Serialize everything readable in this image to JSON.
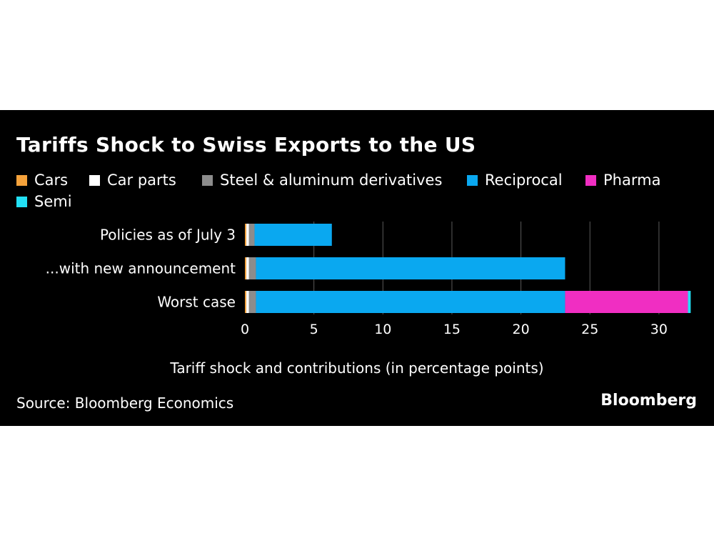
{
  "chart_data": {
    "type": "bar",
    "orientation": "horizontal",
    "stacked": true,
    "title": "Tariffs Shock to Swiss Exports to the US",
    "xlabel": "Tariff shock and contributions (in percentage points)",
    "categories": [
      "Policies as of July 3",
      "...with new announcement",
      "Worst case"
    ],
    "series": [
      {
        "name": "Cars",
        "color": "#f5a23b",
        "values": [
          0.1,
          0.1,
          0.1
        ]
      },
      {
        "name": "Car parts",
        "color": "#ffffff",
        "values": [
          0.2,
          0.2,
          0.2
        ]
      },
      {
        "name": "Steel & aluminum derivatives",
        "color": "#8c8c8c",
        "values": [
          0.4,
          0.5,
          0.5
        ]
      },
      {
        "name": "Reciprocal",
        "color": "#0aa8f0",
        "values": [
          5.6,
          22.4,
          22.4
        ]
      },
      {
        "name": "Pharma",
        "color": "#f02ec2",
        "values": [
          0,
          0,
          8.9
        ]
      },
      {
        "name": "Semi",
        "color": "#22e0f5",
        "values": [
          0,
          0,
          0.2
        ]
      }
    ],
    "xlim": [
      0,
      32.5
    ],
    "xticks": [
      0,
      5,
      10,
      15,
      20,
      25,
      30
    ],
    "grid": true,
    "legend_position": "top-left"
  },
  "source": "Source: Bloomberg Economics",
  "brand": "Bloomberg"
}
